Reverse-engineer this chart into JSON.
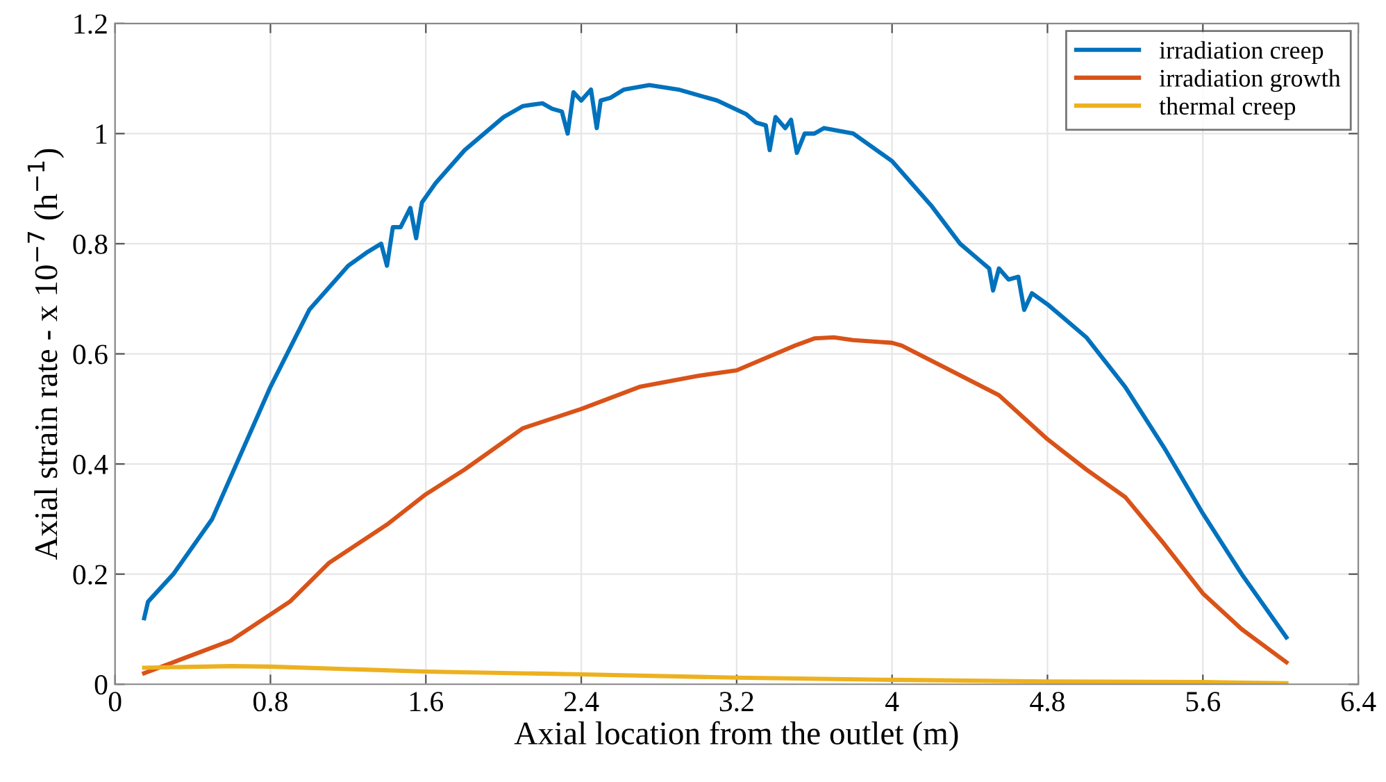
{
  "chart_data": {
    "type": "line",
    "xlabel": "Axial location from the outlet (m)",
    "ylabel": "Axial strain rate - x 10$^{−7}$ (h$^{−1}$)",
    "xlim": [
      0,
      6.4
    ],
    "xticks": [
      0,
      0.8,
      1.6,
      2.4,
      3.2,
      4,
      4.8,
      5.6,
      6.4
    ],
    "ylim": [
      0,
      1.2
    ],
    "yticks": [
      0,
      0.2,
      0.4,
      0.6,
      0.8,
      1,
      1.2
    ],
    "grid": true,
    "legend": "top right",
    "marker": "none",
    "line_style": "solid",
    "series": [
      {
        "name": "irradiation creep",
        "color": "#0072bd",
        "x": [
          0.15,
          0.17,
          0.3,
          0.5,
          0.8,
          1.0,
          1.2,
          1.3,
          1.37,
          1.4,
          1.43,
          1.47,
          1.52,
          1.55,
          1.58,
          1.65,
          1.8,
          2.0,
          2.1,
          2.2,
          2.25,
          2.3,
          2.33,
          2.36,
          2.4,
          2.45,
          2.48,
          2.5,
          2.55,
          2.62,
          2.75,
          2.9,
          3.1,
          3.25,
          3.3,
          3.35,
          3.37,
          3.4,
          3.45,
          3.48,
          3.51,
          3.55,
          3.6,
          3.65,
          3.8,
          4.0,
          4.2,
          4.35,
          4.45,
          4.5,
          4.52,
          4.55,
          4.6,
          4.65,
          4.68,
          4.72,
          4.8,
          5.0,
          5.2,
          5.4,
          5.6,
          5.8,
          6.03
        ],
        "values": [
          0.12,
          0.15,
          0.2,
          0.3,
          0.54,
          0.68,
          0.76,
          0.785,
          0.8,
          0.76,
          0.83,
          0.83,
          0.865,
          0.81,
          0.875,
          0.91,
          0.97,
          1.03,
          1.05,
          1.055,
          1.045,
          1.04,
          1.0,
          1.075,
          1.06,
          1.08,
          1.01,
          1.06,
          1.065,
          1.08,
          1.088,
          1.08,
          1.06,
          1.035,
          1.02,
          1.015,
          0.97,
          1.03,
          1.01,
          1.025,
          0.965,
          1.0,
          1.0,
          1.01,
          1.0,
          0.95,
          0.87,
          0.8,
          0.77,
          0.755,
          0.715,
          0.755,
          0.735,
          0.74,
          0.68,
          0.71,
          0.69,
          0.63,
          0.54,
          0.43,
          0.31,
          0.2,
          0.085
        ]
      },
      {
        "name": "irradiation growth",
        "color": "#d95319",
        "x": [
          0.15,
          0.3,
          0.6,
          0.9,
          1.1,
          1.4,
          1.6,
          1.8,
          2.1,
          2.4,
          2.7,
          3.0,
          3.2,
          3.5,
          3.6,
          3.7,
          3.8,
          4.0,
          4.05,
          4.3,
          4.55,
          4.8,
          5.0,
          5.2,
          5.4,
          5.6,
          5.8,
          6.03
        ],
        "values": [
          0.02,
          0.04,
          0.08,
          0.15,
          0.22,
          0.29,
          0.345,
          0.39,
          0.465,
          0.5,
          0.54,
          0.56,
          0.57,
          0.615,
          0.628,
          0.63,
          0.625,
          0.62,
          0.615,
          0.57,
          0.525,
          0.445,
          0.39,
          0.34,
          0.255,
          0.165,
          0.1,
          0.04
        ]
      },
      {
        "name": "thermal creep",
        "color": "#edb120",
        "x": [
          0.15,
          0.6,
          0.8,
          1.6,
          2.4,
          3.2,
          4.0,
          4.8,
          5.6,
          6.03
        ],
        "values": [
          0.03,
          0.033,
          0.032,
          0.023,
          0.018,
          0.012,
          0.008,
          0.005,
          0.004,
          0.002
        ]
      }
    ]
  }
}
